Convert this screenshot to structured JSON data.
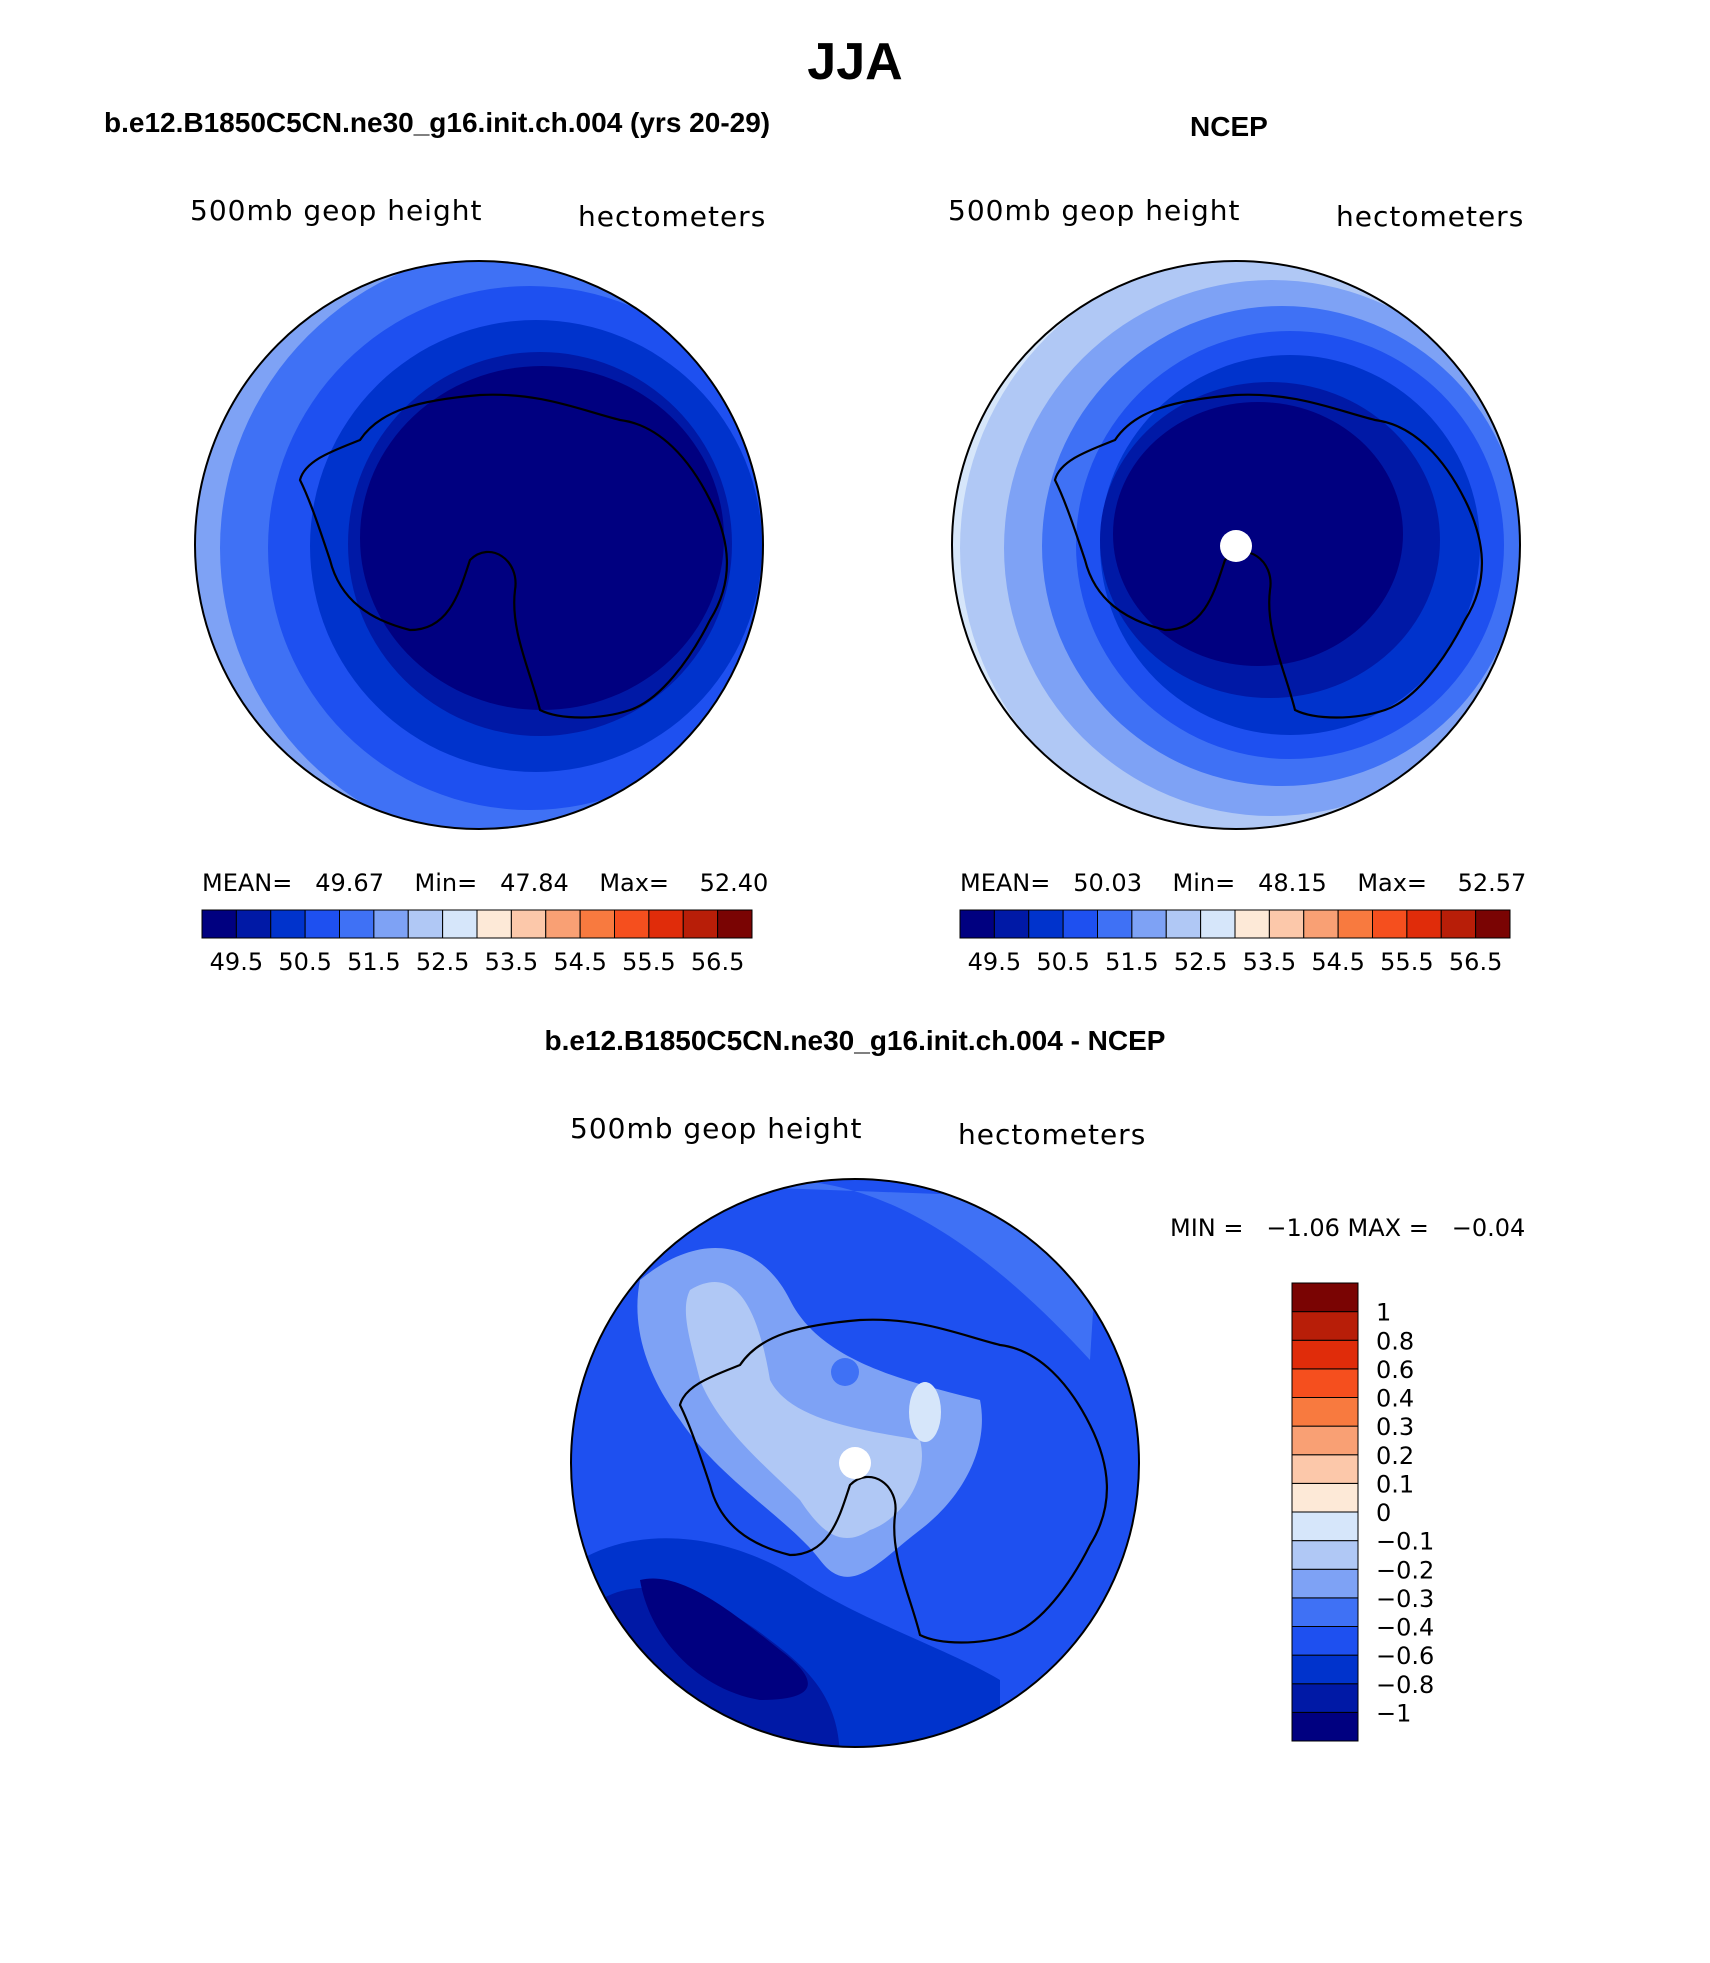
{
  "title": "JJA",
  "left_panel": {
    "case_title": "b.e12.B1850C5CN.ne30_g16.init.ch.004 (yrs 20-29)",
    "variable": "500mb geop height",
    "units": "hectometers",
    "mean_label": "MEAN=",
    "mean": "49.67",
    "min_label": "Min=",
    "min": "47.84",
    "max_label": "Max=",
    "max": "52.40"
  },
  "right_panel": {
    "case_title": "NCEP",
    "variable": "500mb geop height",
    "units": "hectometers",
    "mean_label": "MEAN=",
    "mean": "50.03",
    "min_label": "Min=",
    "min": "48.15",
    "max_label": "Max=",
    "max": "52.57"
  },
  "diff_panel": {
    "case_title": "b.e12.B1850C5CN.ne30_g16.init.ch.004 - NCEP",
    "variable": "500mb geop height",
    "units": "hectometers",
    "minmax_text": "MIN =   −1.06 MAX =   −0.04"
  },
  "colors": {
    "abs_palette": [
      "#000080",
      "#0019a6",
      "#0033cc",
      "#1e50f0",
      "#3f71f5",
      "#7ea2f5",
      "#b0c8f5",
      "#d6e6fa",
      "#fde9d7",
      "#fcc8aa",
      "#f9a074",
      "#f87a3f",
      "#f54f1e",
      "#e02c0a",
      "#b81e08",
      "#7a0403"
    ],
    "diff_palette": [
      "#000080",
      "#0019a6",
      "#0033cc",
      "#1e50f0",
      "#3f71f5",
      "#7ea2f5",
      "#b0c8f5",
      "#d6e6fa",
      "#fde9d7",
      "#fcc8aa",
      "#f9a074",
      "#f87a3f",
      "#f54f1e",
      "#e02c0a",
      "#b81e08",
      "#7a0403"
    ],
    "land_outline": "#000000"
  },
  "chart_data": [
    {
      "type": "heatmap",
      "title": "b.e12.B1850C5CN.ne30_g16.init.ch.004 (yrs 20-29)",
      "variable": "500mb geop height",
      "units": "hectometers",
      "projection": "south polar stereographic",
      "colorbar_ticks": [
        "49.5",
        "50.5",
        "51.5",
        "52.5",
        "53.5",
        "54.5",
        "55.5",
        "56.5"
      ],
      "levels": [
        49,
        49.5,
        50,
        50.5,
        51,
        51.5,
        52,
        52.5,
        53,
        53.5,
        54,
        54.5,
        55,
        55.5,
        56,
        56.5
      ],
      "mean": 49.67,
      "min": 47.84,
      "max": 52.4
    },
    {
      "type": "heatmap",
      "title": "NCEP",
      "variable": "500mb geop height",
      "units": "hectometers",
      "projection": "south polar stereographic",
      "colorbar_ticks": [
        "49.5",
        "50.5",
        "51.5",
        "52.5",
        "53.5",
        "54.5",
        "55.5",
        "56.5"
      ],
      "levels": [
        49,
        49.5,
        50,
        50.5,
        51,
        51.5,
        52,
        52.5,
        53,
        53.5,
        54,
        54.5,
        55,
        55.5,
        56,
        56.5
      ],
      "mean": 50.03,
      "min": 48.15,
      "max": 52.57
    },
    {
      "type": "heatmap",
      "title": "b.e12.B1850C5CN.ne30_g16.init.ch.004 - NCEP",
      "variable": "500mb geop height",
      "units": "hectometers",
      "projection": "south polar stereographic",
      "colorbar_ticks": [
        "−1",
        "−0.8",
        "−0.6",
        "−0.4",
        "−0.3",
        "−0.2",
        "−0.1",
        "0",
        "0.1",
        "0.2",
        "0.3",
        "0.4",
        "0.6",
        "0.8",
        "1"
      ],
      "min": -1.06,
      "max": -0.04
    }
  ]
}
